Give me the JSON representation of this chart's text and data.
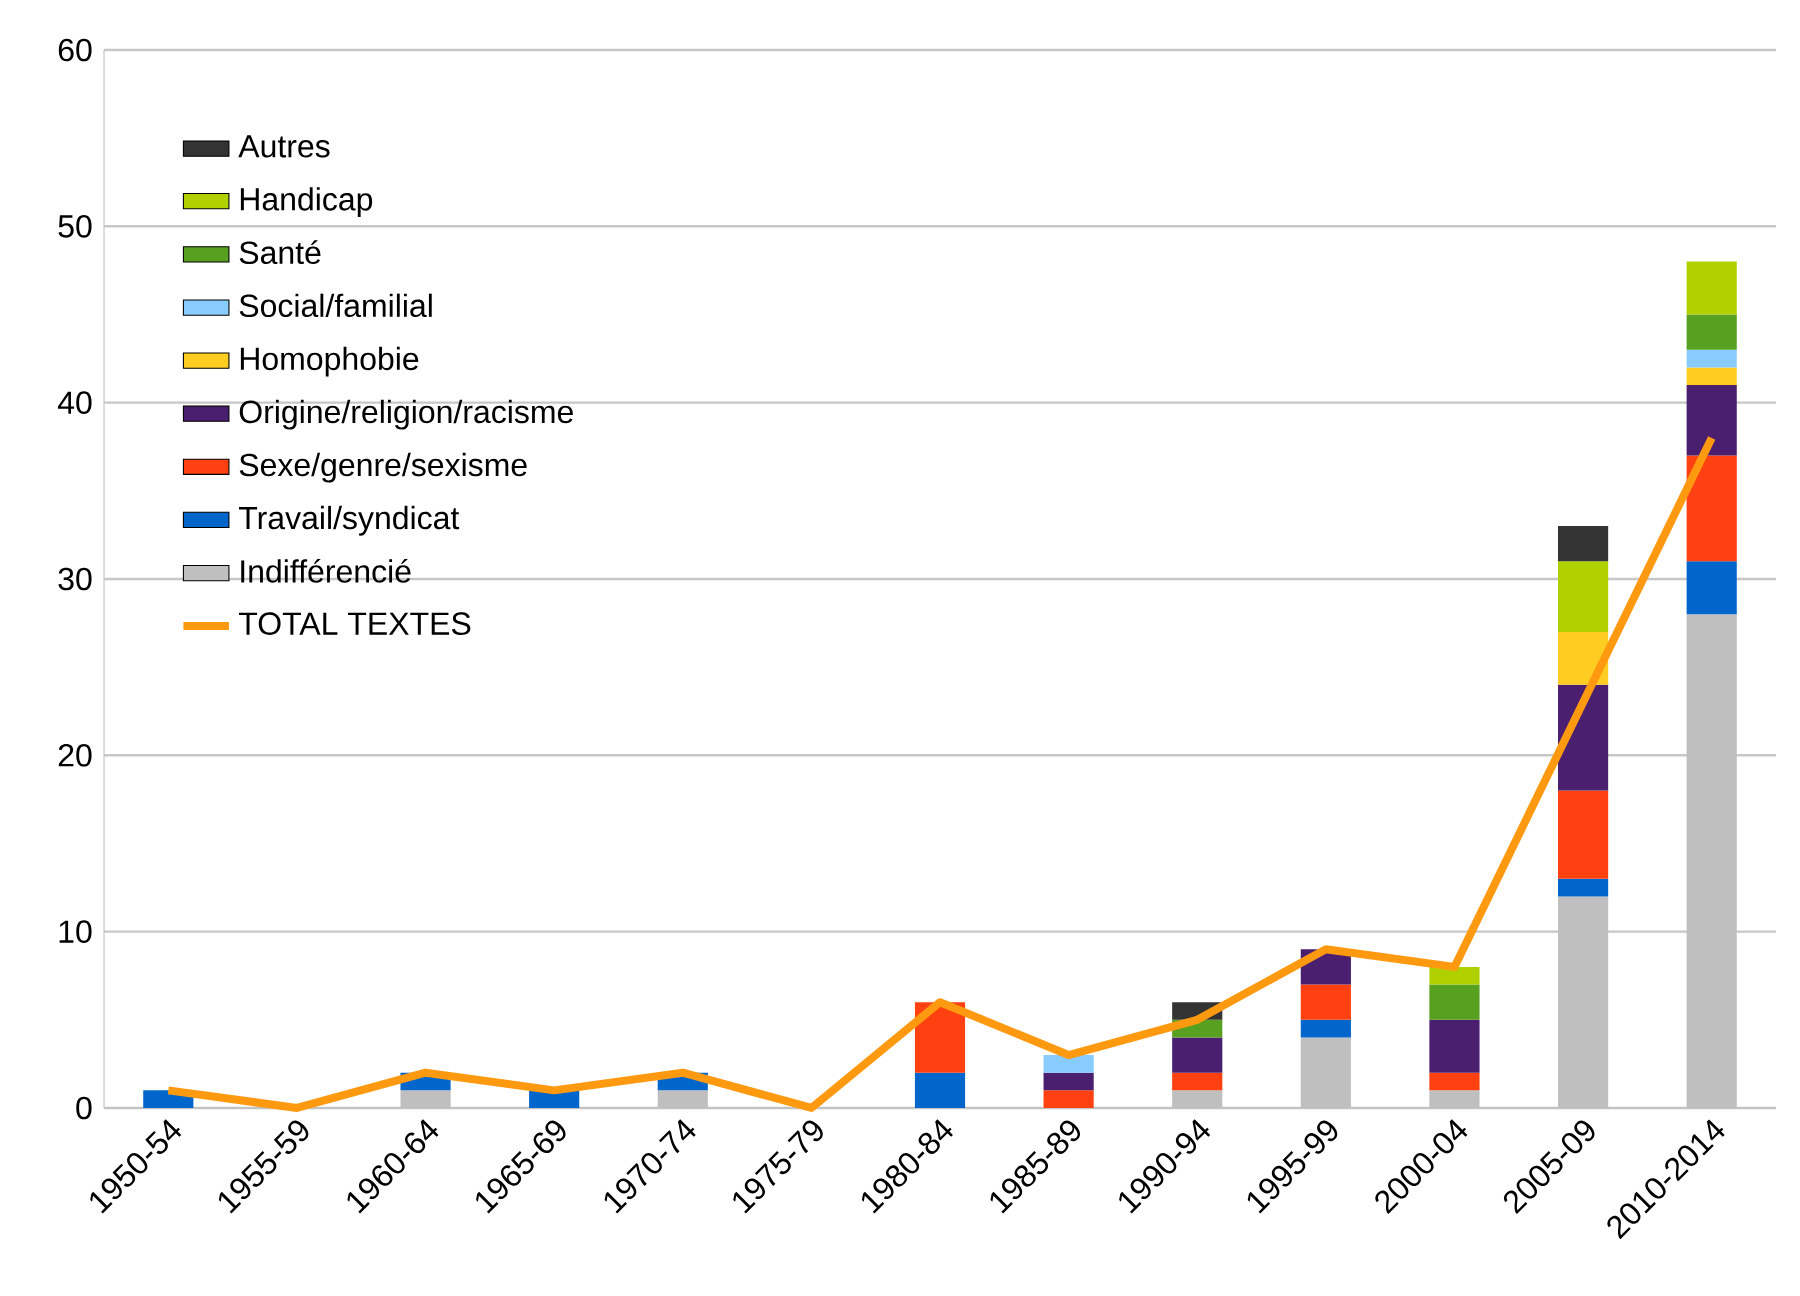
{
  "chart_data": {
    "type": "bar",
    "stacked": true,
    "grid": "y",
    "legend": "top left",
    "categories": [
      "1950-54",
      "1955-59",
      "1960-64",
      "1965-69",
      "1970-74",
      "1975-79",
      "1980-84",
      "1985-89",
      "1990-94",
      "1995-99",
      "2000-04",
      "2005-09",
      "2010-2014"
    ],
    "ylim": [
      0,
      60
    ],
    "yticks": [
      0,
      10,
      20,
      30,
      40,
      50,
      60
    ],
    "series": [
      {
        "name": "Indifférencié",
        "color": "#bfbfbf",
        "values": [
          0,
          0,
          1,
          0,
          1,
          0,
          0,
          0,
          1,
          4,
          1,
          12,
          28
        ]
      },
      {
        "name": "Travail/syndicat",
        "color": "#0066cc",
        "values": [
          1,
          0,
          1,
          1,
          1,
          0,
          2,
          0,
          0,
          1,
          0,
          1,
          3
        ]
      },
      {
        "name": "Sexe/genre/sexisme",
        "color": "#ff4010",
        "values": [
          0,
          0,
          0,
          0,
          0,
          0,
          4,
          1,
          1,
          2,
          1,
          5,
          6
        ]
      },
      {
        "name": "Origine/religion/racisme",
        "color": "#4b1f6f",
        "values": [
          0,
          0,
          0,
          0,
          0,
          0,
          0,
          1,
          2,
          2,
          3,
          6,
          4
        ]
      },
      {
        "name": "Homophobie",
        "color": "#ffcc22",
        "values": [
          0,
          0,
          0,
          0,
          0,
          0,
          0,
          0,
          0,
          0,
          0,
          3,
          1
        ]
      },
      {
        "name": "Social/familial",
        "color": "#88ccff",
        "values": [
          0,
          0,
          0,
          0,
          0,
          0,
          0,
          1,
          0,
          0,
          0,
          0,
          1
        ]
      },
      {
        "name": "Santé",
        "color": "#58a020",
        "values": [
          0,
          0,
          0,
          0,
          0,
          0,
          0,
          0,
          1,
          0,
          2,
          0,
          2
        ]
      },
      {
        "name": "Handicap",
        "color": "#b0d000",
        "values": [
          0,
          0,
          0,
          0,
          0,
          0,
          0,
          0,
          0,
          0,
          1,
          4,
          3
        ]
      },
      {
        "name": "Autres",
        "color": "#333333",
        "values": [
          0,
          0,
          0,
          0,
          0,
          0,
          0,
          0,
          1,
          0,
          0,
          2,
          0
        ]
      },
      {
        "name": "TOTAL TEXTES",
        "type": "line",
        "color": "#ff9910",
        "values": [
          1,
          0,
          2,
          1,
          2,
          0,
          6,
          3,
          5,
          9,
          8,
          23,
          38
        ]
      }
    ]
  }
}
